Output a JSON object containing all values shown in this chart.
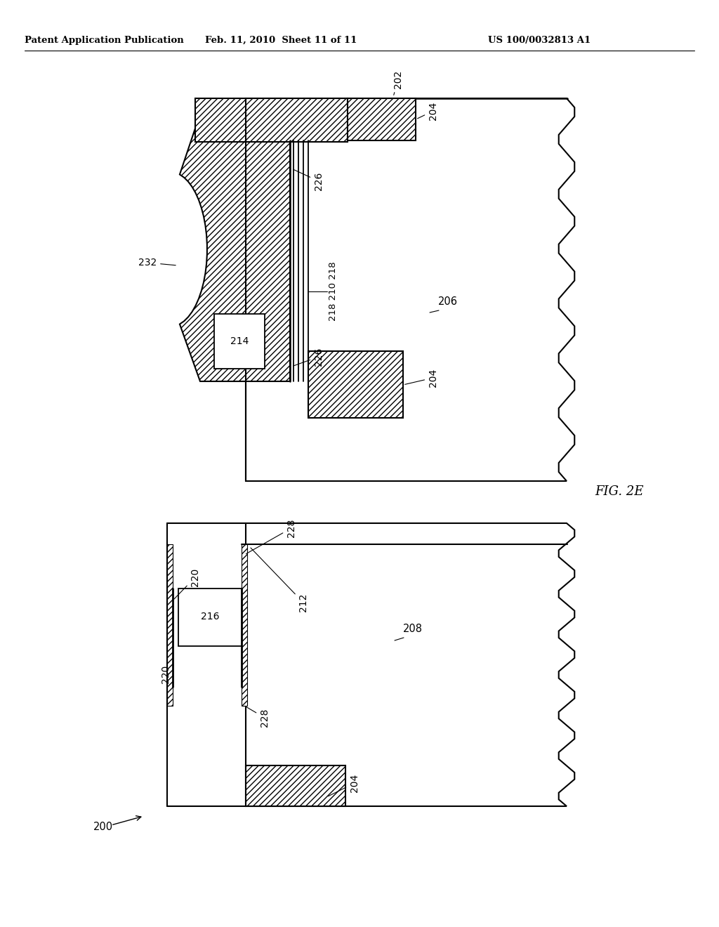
{
  "bg_color": "#ffffff",
  "header_left": "Patent Application Publication",
  "header_center": "Feb. 11, 2010  Sheet 11 of 11",
  "header_right": "US 100/0032813 A1",
  "fig_label": "FIG. 2E",
  "fig_number": "200",
  "hatch": "////",
  "lw": 1.5
}
